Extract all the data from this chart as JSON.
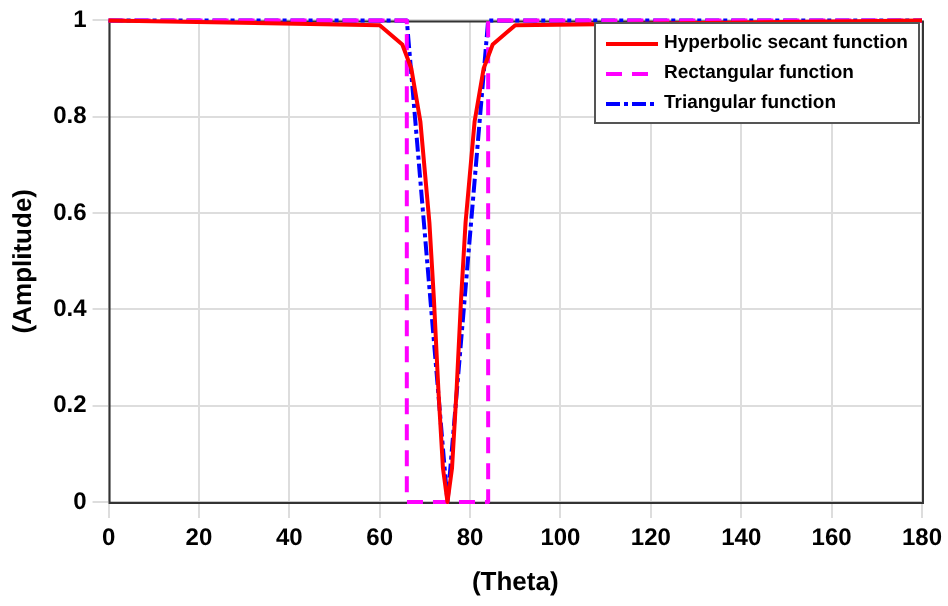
{
  "chart_data": {
    "type": "line",
    "xlabel": "(Theta)",
    "ylabel": "(Amplitude)",
    "xlim": [
      0,
      180
    ],
    "xticks": [
      0,
      20,
      40,
      60,
      80,
      100,
      120,
      140,
      160,
      180
    ],
    "ylim": [
      0,
      1
    ],
    "yticks": [
      0,
      0.2,
      0.4,
      0.6,
      0.8,
      1
    ],
    "grid": true,
    "legend": "top right",
    "marker": "none",
    "series": [
      {
        "name": "Hyperbolic secant function",
        "color": "#ff0000",
        "line_style": "solid",
        "x": [
          0,
          60,
          65,
          67,
          69,
          71,
          72,
          73,
          74,
          75,
          76,
          77,
          78,
          79,
          81,
          83,
          85,
          90,
          180
        ],
        "values": [
          1,
          0.99,
          0.95,
          0.9,
          0.79,
          0.58,
          0.42,
          0.23,
          0.07,
          0,
          0.07,
          0.23,
          0.42,
          0.58,
          0.79,
          0.9,
          0.95,
          0.99,
          1
        ]
      },
      {
        "name": "Rectangular function",
        "color": "#ff00ff",
        "line_style": "dashed",
        "x": [
          0,
          66,
          66,
          84,
          84,
          180
        ],
        "values": [
          1,
          1,
          0,
          0,
          1,
          1
        ]
      },
      {
        "name": "Triangular function",
        "color": "#0000ff",
        "line_style": "dotted",
        "x": [
          0,
          66,
          75,
          84,
          180
        ],
        "values": [
          1,
          1,
          0,
          1,
          1
        ]
      }
    ]
  }
}
